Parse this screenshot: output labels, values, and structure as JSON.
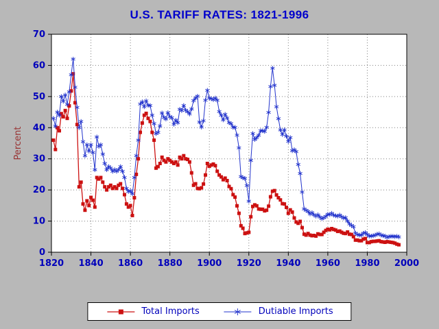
{
  "colors": {
    "background": "#b8b8b8",
    "title": "#0000cc",
    "axis_text": "#0000bb",
    "ylabel": "#993333",
    "grid": "#7e7e7e",
    "plot_background": "#ffffff",
    "legend_background": "#ffffff",
    "total_imports": "#cc1111",
    "dutiable_imports": "#2233cc"
  },
  "chart_data": {
    "type": "line",
    "title": "U.S. TARIFF RATES: 1821-1996",
    "xlabel": "",
    "ylabel": "Percent",
    "xlim": [
      1820,
      2000
    ],
    "ylim": [
      0,
      70
    ],
    "x_ticks": [
      1820,
      1840,
      1860,
      1880,
      1900,
      1920,
      1940,
      1960,
      1980,
      2000
    ],
    "y_ticks": [
      0,
      10,
      20,
      30,
      40,
      50,
      60,
      70
    ],
    "grid": "dotted",
    "legend_position": "bottom-center",
    "x_start": 1821,
    "x_step": 1,
    "x_end": 1996,
    "series": [
      {
        "name": "Total Imports",
        "marker": "square",
        "color": "#cc1111",
        "values": [
          36.0,
          33.0,
          40.0,
          39.0,
          44.5,
          43.5,
          45.5,
          43.0,
          47.0,
          51.8,
          57.3,
          48.0,
          41.0,
          21.0,
          22.5,
          15.5,
          13.5,
          16.5,
          15.0,
          17.6,
          16.7,
          14.5,
          24.0,
          23.5,
          24.0,
          22.5,
          21.0,
          20.0,
          21.0,
          21.5,
          20.5,
          21.0,
          20.5,
          21.5,
          22.0,
          20.5,
          18.5,
          15.5,
          14.5,
          15.0,
          11.8,
          17.5,
          25.0,
          30.0,
          38.5,
          41.5,
          44.0,
          44.6,
          43.0,
          42.0,
          38.5,
          36.0,
          27.0,
          27.5,
          28.5,
          30.5,
          29.5,
          29.0,
          30.0,
          29.5,
          29.0,
          28.5,
          29.0,
          28.0,
          30.5,
          30.0,
          31.0,
          30.0,
          29.8,
          29.0,
          25.5,
          21.5,
          22.0,
          20.5,
          20.4,
          20.7,
          21.9,
          24.8,
          28.5,
          27.6,
          28.0,
          28.3,
          27.8,
          26.0,
          24.8,
          24.2,
          23.3,
          23.8,
          23.0,
          21.1,
          20.4,
          18.5,
          17.7,
          14.9,
          12.5,
          8.5,
          7.7,
          6.0,
          6.2,
          6.4,
          11.4,
          14.7,
          15.2,
          14.9,
          13.9,
          13.8,
          13.8,
          13.3,
          13.5,
          14.8,
          17.8,
          19.6,
          19.8,
          18.4,
          17.5,
          16.8,
          15.6,
          15.5,
          14.4,
          12.5,
          13.6,
          12.9,
          11.0,
          9.7,
          9.3,
          9.9,
          7.9,
          5.8,
          5.5,
          6.0,
          5.5,
          5.3,
          5.4,
          5.2,
          5.9,
          5.7,
          5.7,
          6.4,
          7.0,
          7.4,
          7.2,
          7.6,
          7.3,
          7.1,
          6.7,
          6.8,
          6.4,
          6.1,
          6.0,
          6.5,
          5.8,
          5.7,
          5.0,
          3.9,
          3.9,
          3.7,
          3.7,
          4.2,
          4.4,
          3.1,
          3.1,
          3.4,
          3.5,
          3.5,
          3.6,
          3.7,
          3.4,
          3.3,
          3.2,
          3.4,
          3.3,
          3.2,
          3.1,
          2.9,
          2.6,
          2.4
        ]
      },
      {
        "name": "Dutiable Imports",
        "marker": "star",
        "color": "#2233cc",
        "values": [
          43.0,
          40.5,
          45.0,
          44.0,
          50.0,
          48.5,
          50.5,
          47.5,
          51.5,
          57.0,
          62.0,
          53.0,
          46.5,
          40.0,
          42.0,
          35.5,
          31.0,
          34.5,
          32.5,
          34.5,
          32.0,
          26.5,
          37.0,
          34.0,
          34.5,
          31.5,
          28.5,
          26.5,
          27.5,
          27.0,
          26.0,
          26.5,
          26.0,
          26.5,
          27.5,
          26.0,
          24.0,
          20.5,
          19.5,
          19.7,
          18.8,
          24.0,
          31.0,
          36.0,
          47.6,
          48.3,
          46.7,
          48.6,
          47.2,
          47.1,
          44.0,
          41.3,
          38.1,
          38.5,
          40.6,
          44.7,
          43.3,
          42.8,
          44.8,
          43.5,
          43.2,
          41.1,
          42.4,
          41.6,
          45.9,
          45.5,
          47.1,
          45.6,
          45.1,
          44.4,
          46.0,
          48.7,
          49.5,
          50.1,
          41.8,
          40.2,
          42.2,
          48.8,
          52.0,
          49.5,
          49.3,
          49.0,
          49.5,
          48.8,
          45.2,
          44.0,
          42.5,
          44.3,
          43.1,
          41.6,
          41.3,
          40.1,
          40.1,
          37.6,
          33.5,
          24.3,
          23.9,
          23.7,
          21.4,
          16.4,
          29.5,
          38.1,
          36.2,
          36.8,
          37.6,
          39.0,
          39.0,
          38.8,
          40.1,
          44.9,
          53.2,
          59.1,
          53.6,
          46.7,
          42.9,
          39.3,
          37.8,
          39.3,
          37.3,
          35.6,
          36.8,
          32.6,
          32.9,
          32.3,
          28.2,
          25.3,
          19.3,
          13.9,
          13.5,
          13.1,
          12.3,
          12.7,
          12.0,
          11.6,
          12.0,
          11.3,
          10.8,
          11.1,
          11.5,
          12.2,
          12.1,
          12.5,
          11.9,
          11.7,
          11.6,
          11.9,
          11.4,
          11.0,
          11.1,
          10.0,
          9.1,
          8.6,
          8.2,
          6.1,
          5.7,
          5.5,
          5.5,
          6.1,
          6.3,
          5.7,
          5.2,
          5.2,
          5.3,
          5.5,
          5.8,
          5.9,
          5.5,
          5.3,
          5.2,
          4.8,
          5.0,
          5.1,
          5.1,
          5.0,
          5.1,
          4.9
        ]
      }
    ]
  }
}
